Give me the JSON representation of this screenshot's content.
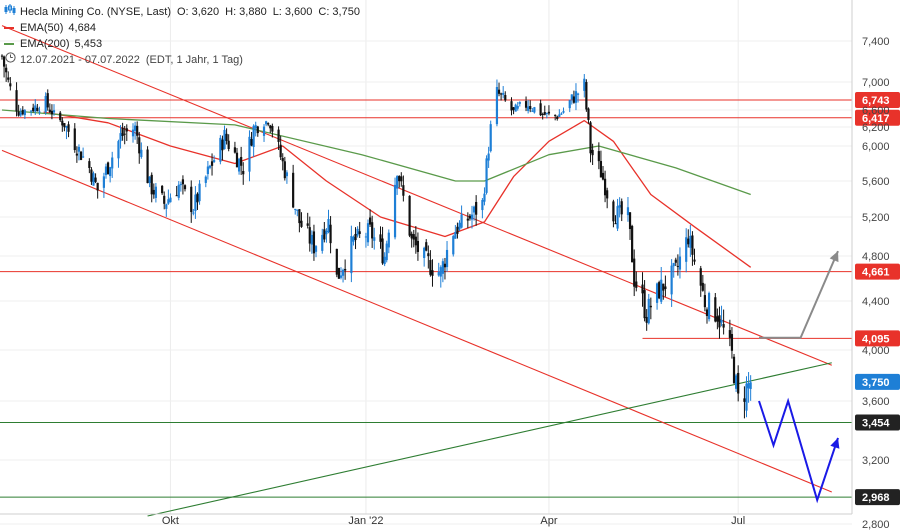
{
  "legend": {
    "instrument": "Hecla Mining Co. (NYSE, Last)",
    "ohlc": [
      {
        "label": "O:",
        "value": "3,620"
      },
      {
        "label": "H:",
        "value": "3,880"
      },
      {
        "label": "L:",
        "value": "3,600"
      },
      {
        "label": "C:",
        "value": "3,750"
      }
    ],
    "ema50_label": "EMA(50)",
    "ema50_value": "4,684",
    "ema200_label": "EMA(200)",
    "ema200_value": "5,453",
    "period": "12.07.2021 - 07.07.2022",
    "period_note": "(EDT, 1 Jahr, 1 Tag)",
    "icons": {
      "instrument": "candlestick-icon",
      "period": "clock-icon"
    }
  },
  "colors": {
    "up": "#1e7fd6",
    "down": "#111111",
    "ema50": "#e8322a",
    "ema200": "#5a9a4a",
    "resistance": "#e8322a",
    "support": "#2e7d32",
    "projection_blue": "#1a1ae6",
    "projection_gray": "#8a8a8a",
    "last_price": "#1e7fd6",
    "level_red": "#e8322a",
    "level_dark": "#222222"
  },
  "chart_data": {
    "type": "candlestick",
    "x_range": [
      "2021-07-12",
      "2022-07-07"
    ],
    "x_ticks": [
      {
        "date": "2021-10-01",
        "label": "Okt"
      },
      {
        "date": "2022-01-03",
        "label": "Jan '22"
      },
      {
        "date": "2022-04-01",
        "label": "Apr"
      },
      {
        "date": "2022-07-01",
        "label": "Jul"
      }
    ],
    "y_ticks": [
      "7,400",
      "7,000",
      "6,600",
      "6,200",
      "6,000",
      "5,600",
      "5,200",
      "4,800",
      "4,400",
      "4,000",
      "3,600",
      "3,200",
      "2,800"
    ],
    "y_tick_values": [
      7.4,
      7.0,
      6.6,
      6.2,
      6.0,
      5.6,
      5.2,
      4.8,
      4.4,
      4.0,
      3.6,
      3.2,
      2.8
    ],
    "close_anchors": [
      [
        "2021-07-12",
        7.25
      ],
      [
        "2021-07-20",
        6.55
      ],
      [
        "2021-08-02",
        6.7
      ],
      [
        "2021-08-12",
        6.2
      ],
      [
        "2021-08-23",
        5.75
      ],
      [
        "2021-08-27",
        5.5
      ],
      [
        "2021-09-07",
        6.1
      ],
      [
        "2021-09-14",
        6.2
      ],
      [
        "2021-09-21",
        5.55
      ],
      [
        "2021-09-28",
        5.35
      ],
      [
        "2021-10-05",
        5.55
      ],
      [
        "2021-10-12",
        5.3
      ],
      [
        "2021-10-20",
        5.75
      ],
      [
        "2021-10-27",
        6.1
      ],
      [
        "2021-11-05",
        5.75
      ],
      [
        "2021-11-10",
        6.2
      ],
      [
        "2021-11-17",
        6.35
      ],
      [
        "2021-11-24",
        5.8
      ],
      [
        "2021-12-02",
        5.15
      ],
      [
        "2021-12-09",
        4.9
      ],
      [
        "2021-12-16",
        5.15
      ],
      [
        "2021-12-20",
        4.6
      ],
      [
        "2021-12-28",
        4.95
      ],
      [
        "2022-01-05",
        5.05
      ],
      [
        "2022-01-12",
        4.8
      ],
      [
        "2022-01-18",
        5.75
      ],
      [
        "2022-01-25",
        4.95
      ],
      [
        "2022-02-01",
        4.75
      ],
      [
        "2022-02-08",
        4.65
      ],
      [
        "2022-02-14",
        5.05
      ],
      [
        "2022-02-22",
        5.2
      ],
      [
        "2022-02-28",
        5.35
      ],
      [
        "2022-03-07",
        6.85
      ],
      [
        "2022-03-10",
        6.75
      ],
      [
        "2022-03-15",
        6.55
      ],
      [
        "2022-03-22",
        6.7
      ],
      [
        "2022-03-29",
        6.5
      ],
      [
        "2022-04-05",
        6.45
      ],
      [
        "2022-04-12",
        6.75
      ],
      [
        "2022-04-18",
        6.95
      ],
      [
        "2022-04-21",
        5.95
      ],
      [
        "2022-04-26",
        5.7
      ],
      [
        "2022-05-02",
        5.25
      ],
      [
        "2022-05-09",
        5.2
      ],
      [
        "2022-05-12",
        4.6
      ],
      [
        "2022-05-18",
        4.3
      ],
      [
        "2022-05-24",
        4.5
      ],
      [
        "2022-06-01",
        4.65
      ],
      [
        "2022-06-07",
        5.0
      ],
      [
        "2022-06-10",
        4.75
      ],
      [
        "2022-06-15",
        4.4
      ],
      [
        "2022-06-21",
        4.3
      ],
      [
        "2022-06-28",
        3.95
      ],
      [
        "2022-07-01",
        3.6
      ],
      [
        "2022-07-07",
        3.75
      ]
    ],
    "series": [
      {
        "name": "EMA(50)",
        "points": [
          [
            "2021-08-01",
            6.55
          ],
          [
            "2021-09-01",
            6.3
          ],
          [
            "2021-10-01",
            6.0
          ],
          [
            "2021-11-01",
            5.8
          ],
          [
            "2021-11-24",
            6.0
          ],
          [
            "2021-12-15",
            5.6
          ],
          [
            "2022-01-10",
            5.2
          ],
          [
            "2022-02-10",
            5.0
          ],
          [
            "2022-03-01",
            5.15
          ],
          [
            "2022-03-15",
            5.65
          ],
          [
            "2022-04-01",
            6.05
          ],
          [
            "2022-04-18",
            6.35
          ],
          [
            "2022-05-02",
            6.05
          ],
          [
            "2022-05-20",
            5.45
          ],
          [
            "2022-06-10",
            5.1
          ],
          [
            "2022-07-07",
            4.7
          ]
        ]
      },
      {
        "name": "EMA(200)",
        "points": [
          [
            "2021-07-12",
            6.6
          ],
          [
            "2021-09-01",
            6.4
          ],
          [
            "2021-11-01",
            6.25
          ],
          [
            "2022-01-01",
            5.9
          ],
          [
            "2022-02-15",
            5.6
          ],
          [
            "2022-03-01",
            5.6
          ],
          [
            "2022-04-01",
            5.9
          ],
          [
            "2022-04-25",
            6.0
          ],
          [
            "2022-06-01",
            5.75
          ],
          [
            "2022-07-07",
            5.45
          ]
        ]
      }
    ],
    "horizontal_levels": [
      {
        "value": 6.743,
        "label": "6,743",
        "style": "red"
      },
      {
        "value": 6.417,
        "label": "6,417",
        "style": "red"
      },
      {
        "value": 4.661,
        "label": "4,661",
        "style": "red"
      },
      {
        "value": 4.095,
        "label": "4,095",
        "style": "red",
        "from": "2022-05-16"
      },
      {
        "value": 3.454,
        "label": "3,454",
        "style": "dark"
      },
      {
        "value": 2.968,
        "label": "2,968",
        "style": "dark"
      }
    ],
    "last_price": {
      "value": 3.75,
      "label": "3,750"
    },
    "trend_lines": [
      {
        "name": "upper-channel",
        "color": "red",
        "from": [
          "2021-07-12",
          7.55
        ],
        "to": [
          "2022-08-15",
          3.88
        ]
      },
      {
        "name": "lower-channel",
        "color": "red",
        "from": [
          "2021-07-12",
          5.95
        ],
        "to": [
          "2022-08-15",
          3.0
        ]
      },
      {
        "name": "rising-support",
        "color": "green",
        "from": [
          "2021-09-20",
          2.85
        ],
        "to": [
          "2022-08-15",
          3.9
        ]
      }
    ],
    "projections": [
      {
        "color": "blue",
        "points": [
          [
            "2022-07-11",
            3.6
          ],
          [
            "2022-07-18",
            3.3
          ],
          [
            "2022-07-25",
            3.6
          ],
          [
            "2022-08-08",
            2.95
          ],
          [
            "2022-08-18",
            3.35
          ]
        ]
      },
      {
        "color": "gray",
        "points": [
          [
            "2022-07-11",
            4.1
          ],
          [
            "2022-07-31",
            4.1
          ],
          [
            "2022-08-18",
            4.85
          ]
        ]
      }
    ]
  }
}
